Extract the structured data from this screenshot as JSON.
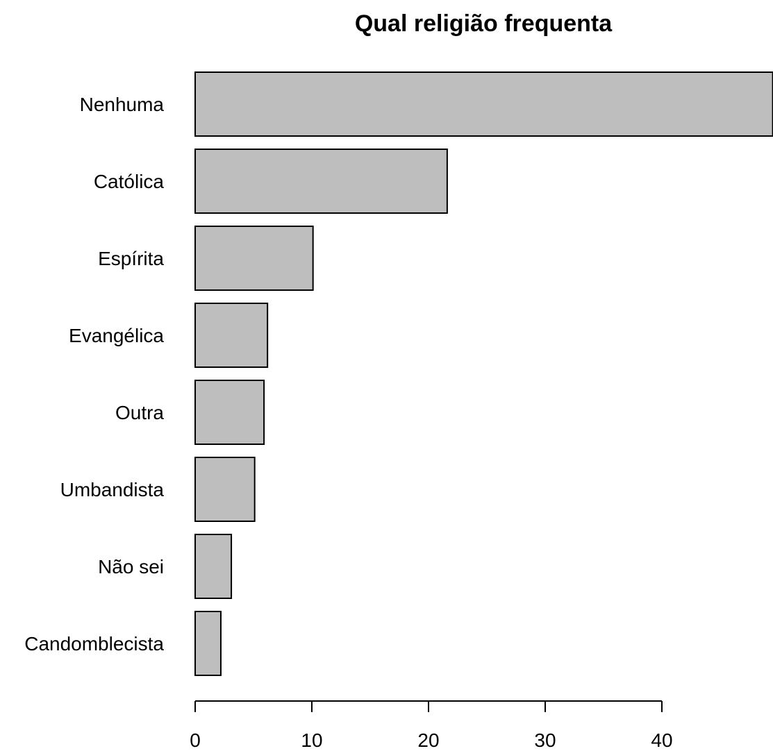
{
  "chart_data": {
    "type": "bar",
    "orientation": "horizontal",
    "title": "Qual religião frequenta",
    "xlabel": "",
    "ylabel": "",
    "categories": [
      "Nenhuma",
      "Católica",
      "Espírita",
      "Evangélica",
      "Outra",
      "Umbandista",
      "Não sei",
      "Candomblecista"
    ],
    "values": [
      49.5,
      21.6,
      10.1,
      6.2,
      5.9,
      5.1,
      3.1,
      2.2
    ],
    "x_ticks": [
      "0",
      "10",
      "20",
      "30",
      "40"
    ],
    "xlim": [
      0,
      49.5
    ],
    "grid": false,
    "bar_color": "#bebebe",
    "border_color": "#000000"
  }
}
